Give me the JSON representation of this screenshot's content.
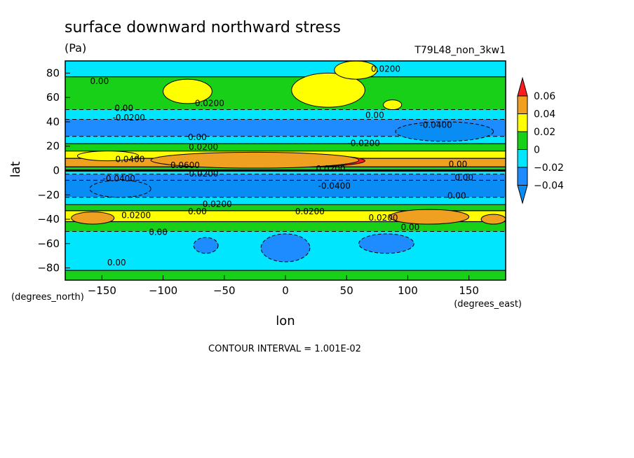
{
  "chart_data": {
    "type": "heatmap",
    "title": "surface downward northward stress",
    "units": "(Pa)",
    "run_id": "T79L48_non_3kw1",
    "xlabel": "lon",
    "ylabel": "lat",
    "x_units": "(degrees_east)",
    "y_units": "(degrees_north)",
    "xlim": [
      -180,
      180
    ],
    "ylim": [
      -90,
      90
    ],
    "x_ticks": [
      -150,
      -100,
      -50,
      0,
      50,
      100,
      150
    ],
    "y_ticks": [
      80,
      60,
      40,
      20,
      0,
      -20,
      -40,
      -60,
      -80
    ],
    "contour_interval_text": "CONTOUR INTERVAL = 1.001E-02",
    "colorbar": {
      "levels": [
        -0.04,
        -0.02,
        0,
        0.02,
        0.04,
        0.06
      ],
      "labels": [
        "−0.04",
        "−0.02",
        "0",
        "0.02",
        "0.04",
        "0.06"
      ],
      "colors": [
        "#0a8cf5",
        "#1e8cff",
        "#00e6ff",
        "#18d018",
        "#ffff00",
        "#f0a020",
        "#ff1c1c"
      ]
    },
    "bands": [
      {
        "lat": [
          77,
          90
        ],
        "value": -0.01
      },
      {
        "lat": [
          50,
          77
        ],
        "value": 0.01
      },
      {
        "lat": [
          42,
          50
        ],
        "value": -0.005
      },
      {
        "lat": [
          28,
          42
        ],
        "value": -0.03
      },
      {
        "lat": [
          22,
          28
        ],
        "value": -0.005
      },
      {
        "lat": [
          16,
          22
        ],
        "value": 0.01
      },
      {
        "lat": [
          10,
          16
        ],
        "value": 0.03
      },
      {
        "lat": [
          3,
          10
        ],
        "value": 0.045
      },
      {
        "lat": [
          0,
          3
        ],
        "value": 0.005
      },
      {
        "lat": [
          -3,
          0
        ],
        "value": -0.005
      },
      {
        "lat": [
          -8,
          -3
        ],
        "value": -0.03
      },
      {
        "lat": [
          -22,
          -8
        ],
        "value": -0.045
      },
      {
        "lat": [
          -28,
          -22
        ],
        "value": -0.015
      },
      {
        "lat": [
          -33,
          -28
        ],
        "value": 0.01
      },
      {
        "lat": [
          -42,
          -33
        ],
        "value": 0.03
      },
      {
        "lat": [
          -50,
          -42
        ],
        "value": 0.01
      },
      {
        "lat": [
          -82,
          -50
        ],
        "value": -0.01
      },
      {
        "lat": [
          -90,
          -82
        ],
        "value": 0.01
      }
    ],
    "features": [
      {
        "lon": [
          -40,
          65
        ],
        "lat": [
          3,
          13
        ],
        "value": 0.065
      },
      {
        "lon": [
          -110,
          60
        ],
        "lat": [
          2,
          15
        ],
        "value": 0.05
      },
      {
        "lon": [
          -170,
          -120
        ],
        "lat": [
          8,
          16
        ],
        "value": 0.03
      },
      {
        "lon": [
          -100,
          -60
        ],
        "lat": [
          55,
          75
        ],
        "value": 0.03
      },
      {
        "lon": [
          5,
          65
        ],
        "lat": [
          52,
          80
        ],
        "value": 0.03
      },
      {
        "lon": [
          40,
          75
        ],
        "lat": [
          75,
          90
        ],
        "value": 0.03
      },
      {
        "lon": [
          80,
          95
        ],
        "lat": [
          50,
          58
        ],
        "value": 0.03
      },
      {
        "lon": [
          85,
          150
        ],
        "lat": [
          -44,
          -32
        ],
        "value": 0.04
      },
      {
        "lon": [
          -175,
          -140
        ],
        "lat": [
          -44,
          -34
        ],
        "value": 0.04
      },
      {
        "lon": [
          160,
          180
        ],
        "lat": [
          -44,
          -36
        ],
        "value": 0.04
      },
      {
        "lon": [
          90,
          170
        ],
        "lat": [
          24,
          40
        ],
        "value": -0.045
      },
      {
        "lon": [
          -160,
          -110
        ],
        "lat": [
          -22,
          -8
        ],
        "value": -0.05
      },
      {
        "lon": [
          -75,
          -55
        ],
        "lat": [
          -68,
          -55
        ],
        "value": -0.03
      },
      {
        "lon": [
          -20,
          20
        ],
        "lat": [
          -75,
          -52
        ],
        "value": -0.03
      },
      {
        "lon": [
          60,
          105
        ],
        "lat": [
          -68,
          -52
        ],
        "value": -0.03
      }
    ],
    "contour_labels": [
      {
        "text": "0.00",
        "lon": -152,
        "lat": 71
      },
      {
        "text": "0.0200",
        "lon": -62,
        "lat": 53
      },
      {
        "text": "0.0200",
        "lon": 82,
        "lat": 81
      },
      {
        "text": "0.00",
        "lon": -132,
        "lat": 49
      },
      {
        "text": "-0.0200",
        "lon": -128,
        "lat": 41
      },
      {
        "text": "0.00",
        "lon": 73,
        "lat": 43
      },
      {
        "text": "-0.0400",
        "lon": 123,
        "lat": 35
      },
      {
        "text": "0.00",
        "lon": -72,
        "lat": 25
      },
      {
        "text": "0.0200",
        "lon": -67,
        "lat": 17
      },
      {
        "text": "-0.0200",
        "lon": 64,
        "lat": 20
      },
      {
        "text": "0.00",
        "lon": 141,
        "lat": 3
      },
      {
        "text": "0.0400",
        "lon": -127,
        "lat": 7
      },
      {
        "text": "0.0600",
        "lon": -82,
        "lat": 2
      },
      {
        "text": "0.0200",
        "lon": 37,
        "lat": -1
      },
      {
        "text": "0.00",
        "lon": 146,
        "lat": -8
      },
      {
        "text": "-0.0400",
        "lon": -136,
        "lat": -9
      },
      {
        "text": "-0.0200",
        "lon": -68,
        "lat": -5
      },
      {
        "text": "-0.0400",
        "lon": 40,
        "lat": -15
      },
      {
        "text": "0.00",
        "lon": 140,
        "lat": -23
      },
      {
        "text": "-0.0200",
        "lon": -57,
        "lat": -30
      },
      {
        "text": "0.00",
        "lon": -72,
        "lat": -36
      },
      {
        "text": "0.0200",
        "lon": -122,
        "lat": -39
      },
      {
        "text": "0.0200",
        "lon": 20,
        "lat": -36
      },
      {
        "text": "0.0200",
        "lon": 80,
        "lat": -41
      },
      {
        "text": "0.00",
        "lon": 102,
        "lat": -49
      },
      {
        "text": "0.00",
        "lon": -104,
        "lat": -53
      },
      {
        "text": "0.00",
        "lon": -138,
        "lat": -78
      }
    ]
  }
}
